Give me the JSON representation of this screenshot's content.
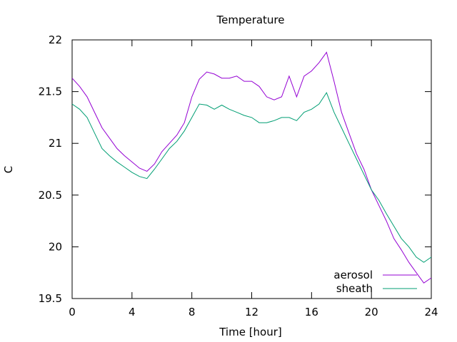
{
  "chart_data": {
    "type": "line",
    "title": "Temperature",
    "xlabel": "Time [hour]",
    "ylabel": "C",
    "xlim": [
      0,
      24
    ],
    "ylim": [
      19.5,
      22
    ],
    "xticks": [
      0,
      4,
      8,
      12,
      16,
      20,
      24
    ],
    "yticks": [
      19.5,
      20,
      20.5,
      21,
      21.5,
      22
    ],
    "grid": false,
    "legend_position": "bottom-right",
    "series": [
      {
        "name": "aerosol",
        "color": "#9400d3",
        "x": [
          0,
          0.5,
          1,
          1.5,
          2,
          2.5,
          3,
          3.5,
          4,
          4.5,
          5,
          5.5,
          6,
          6.5,
          7,
          7.5,
          8,
          8.5,
          9,
          9.5,
          10,
          10.5,
          11,
          11.5,
          12,
          12.5,
          13,
          13.5,
          14,
          14.5,
          15,
          15.5,
          16,
          16.5,
          17,
          17.5,
          18,
          18.5,
          19,
          19.5,
          20,
          20.5,
          21,
          21.5,
          22,
          22.5,
          23,
          23.5,
          24
        ],
        "y": [
          21.63,
          21.55,
          21.45,
          21.3,
          21.15,
          21.05,
          20.95,
          20.88,
          20.82,
          20.76,
          20.73,
          20.8,
          20.92,
          21.0,
          21.08,
          21.2,
          21.45,
          21.62,
          21.69,
          21.67,
          21.63,
          21.63,
          21.65,
          21.6,
          21.6,
          21.55,
          21.45,
          21.42,
          21.45,
          21.65,
          21.45,
          21.65,
          21.7,
          21.78,
          21.88,
          21.6,
          21.3,
          21.1,
          20.9,
          20.75,
          20.55,
          20.4,
          20.25,
          20.08,
          19.97,
          19.85,
          19.75,
          19.65,
          19.7
        ]
      },
      {
        "name": "sheath",
        "color": "#009e73",
        "x": [
          0,
          0.5,
          1,
          1.5,
          2,
          2.5,
          3,
          3.5,
          4,
          4.5,
          5,
          5.5,
          6,
          6.5,
          7,
          7.5,
          8,
          8.5,
          9,
          9.5,
          10,
          10.5,
          11,
          11.5,
          12,
          12.5,
          13,
          13.5,
          14,
          14.5,
          15,
          15.5,
          16,
          16.5,
          17,
          17.5,
          18,
          18.5,
          19,
          19.5,
          20,
          20.5,
          21,
          21.5,
          22,
          22.5,
          23,
          23.5,
          24
        ],
        "y": [
          21.38,
          21.33,
          21.25,
          21.1,
          20.95,
          20.88,
          20.82,
          20.77,
          20.72,
          20.68,
          20.66,
          20.75,
          20.85,
          20.95,
          21.02,
          21.12,
          21.25,
          21.38,
          21.37,
          21.33,
          21.37,
          21.33,
          21.3,
          21.27,
          21.25,
          21.2,
          21.2,
          21.22,
          21.25,
          21.25,
          21.22,
          21.3,
          21.33,
          21.38,
          21.49,
          21.3,
          21.15,
          21.0,
          20.85,
          20.7,
          20.55,
          20.45,
          20.32,
          20.2,
          20.08,
          20.0,
          19.9,
          19.85,
          19.9
        ]
      }
    ]
  }
}
